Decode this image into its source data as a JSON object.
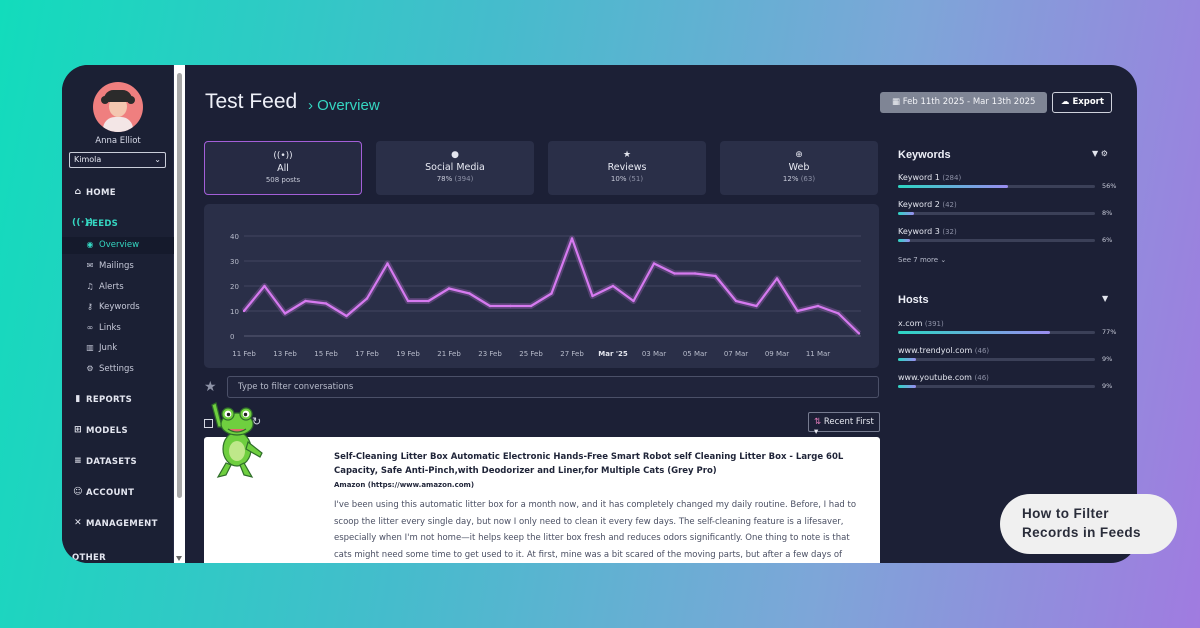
{
  "user": {
    "name": "Anna Elliot",
    "org": "Kimola"
  },
  "nav": {
    "home": "HOME",
    "feeds": "FEEDS",
    "feed_items": [
      "Overview",
      "Mailings",
      "Alerts",
      "Keywords",
      "Links",
      "Junk",
      "Settings"
    ],
    "reports": "REPORTS",
    "models": "MODELS",
    "datasets": "DATASETS",
    "account": "ACCOUNT",
    "management": "MANAGEMENT",
    "other": "OTHER"
  },
  "header": {
    "title": "Test Feed",
    "crumb": "Overview",
    "date_range": "Feb 11th 2025 - Mar 13th 2025",
    "export": "Export"
  },
  "filters": [
    {
      "label": "All",
      "count": "508 posts",
      "pct": "",
      "sub": ""
    },
    {
      "label": "Social Media",
      "count": "",
      "pct": "78%",
      "sub": "(394)"
    },
    {
      "label": "Reviews",
      "count": "",
      "pct": "10%",
      "sub": "(51)"
    },
    {
      "label": "Web",
      "count": "",
      "pct": "12%",
      "sub": "(63)"
    }
  ],
  "chart_data": {
    "type": "line",
    "x": [
      "11 Feb",
      "12 Feb",
      "13 Feb",
      "14 Feb",
      "15 Feb",
      "16 Feb",
      "17 Feb",
      "18 Feb",
      "19 Feb",
      "20 Feb",
      "21 Feb",
      "22 Feb",
      "23 Feb",
      "24 Feb",
      "25 Feb",
      "26 Feb",
      "27 Feb",
      "28 Feb",
      "Mar '25",
      "02 Mar",
      "03 Mar",
      "04 Mar",
      "05 Mar",
      "06 Mar",
      "07 Mar",
      "08 Mar",
      "09 Mar",
      "10 Mar",
      "11 Mar",
      "12 Mar",
      "13 Mar"
    ],
    "tick_labels": [
      "11 Feb",
      "13 Feb",
      "15 Feb",
      "17 Feb",
      "19 Feb",
      "21 Feb",
      "23 Feb",
      "25 Feb",
      "27 Feb",
      "Mar '25",
      "03 Mar",
      "05 Mar",
      "07 Mar",
      "09 Mar",
      "11 Mar"
    ],
    "series": [
      {
        "name": "",
        "values": [
          10,
          20,
          9,
          14,
          13,
          8,
          15,
          29,
          14,
          14,
          19,
          17,
          12,
          12,
          12,
          17,
          39,
          16,
          20,
          14,
          29,
          25,
          25,
          24,
          14,
          12,
          23,
          10,
          12,
          9,
          1
        ]
      }
    ],
    "ylim": [
      0,
      40
    ],
    "yticks": [
      0,
      10,
      20,
      30,
      40
    ],
    "grid": true,
    "color": "#d67af0"
  },
  "filter_placeholder": "Type to filter conversations",
  "sort_label": "Recent First",
  "post": {
    "title": "Self-Cleaning Litter Box Automatic Electronic Hands-Free Smart Robot self Cleaning Litter Box - Large 60L Capacity, Safe Anti-Pinch,with Deodorizer and Liner,for Multiple Cats (Grey Pro)",
    "source": "Amazon (https://www.amazon.com)",
    "body": "I've been using this automatic litter box for a month now, and it has completely changed my daily routine. Before, I had to scoop the litter every single day, but now I only need to clean it every few days. The self-cleaning feature is a lifesaver, especially when I'm not home—it helps keep the litter box fresh and reduces odors significantly. One thing to note is that cats might need some time to get used to it. At first, mine was a bit scared of the moving parts, but after a few days of"
  },
  "keywords": {
    "title": "Keywords",
    "items": [
      {
        "label": "Keyword 1",
        "count": "(284)",
        "pct": "56%",
        "value": 0.56
      },
      {
        "label": "Keyword 2",
        "count": "(42)",
        "pct": "8%",
        "value": 0.08
      },
      {
        "label": "Keyword 3",
        "count": "(32)",
        "pct": "6%",
        "value": 0.06
      }
    ],
    "see_more": "See 7 more"
  },
  "hosts": {
    "title": "Hosts",
    "items": [
      {
        "label": "x.com",
        "count": "(391)",
        "pct": "77%",
        "value": 0.77
      },
      {
        "label": "www.trendyol.com",
        "count": "(46)",
        "pct": "9%",
        "value": 0.09
      },
      {
        "label": "www.youtube.com",
        "count": "(46)",
        "pct": "9%",
        "value": 0.09
      }
    ]
  },
  "pill": {
    "line1": "How to Filter",
    "line2": "Records in Feeds"
  }
}
